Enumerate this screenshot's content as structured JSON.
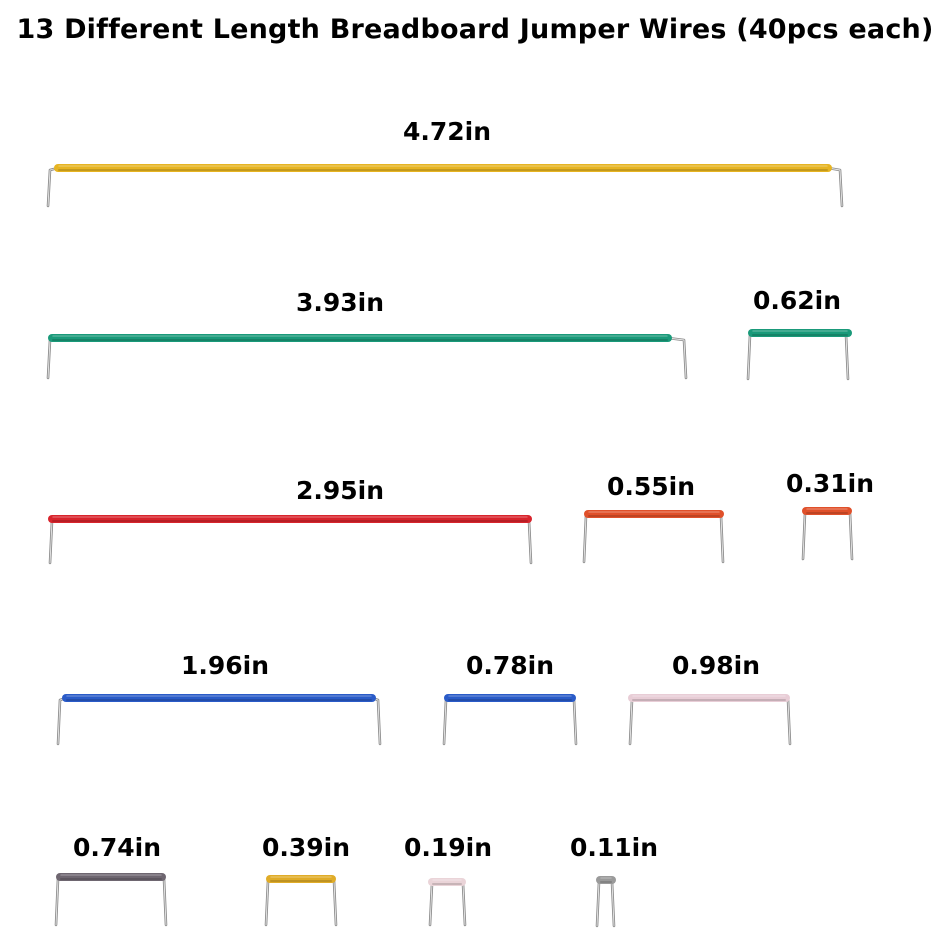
{
  "title": "13 Different Length Breadboard Jumper Wires (40pcs each)",
  "wires": [
    {
      "label": "4.72in",
      "color": "#e6b422"
    },
    {
      "label": "3.93in",
      "color": "#1a9a7a"
    },
    {
      "label": "0.62in",
      "color": "#1a9a7a"
    },
    {
      "label": "2.95in",
      "color": "#d8242c"
    },
    {
      "label": "0.55in",
      "color": "#e0502a"
    },
    {
      "label": "0.31in",
      "color": "#e0502a"
    },
    {
      "label": "1.96in",
      "color": "#2a5bc8"
    },
    {
      "label": "0.78in",
      "color": "#2a5bc8"
    },
    {
      "label": "0.98in",
      "color": "#e8cdd6"
    },
    {
      "label": "0.74in",
      "color": "#6e6670"
    },
    {
      "label": "0.39in",
      "color": "#e0ac28"
    },
    {
      "label": "0.19in",
      "color": "#ead4d8"
    },
    {
      "label": "0.11in",
      "color": "#9a9a9a"
    }
  ]
}
